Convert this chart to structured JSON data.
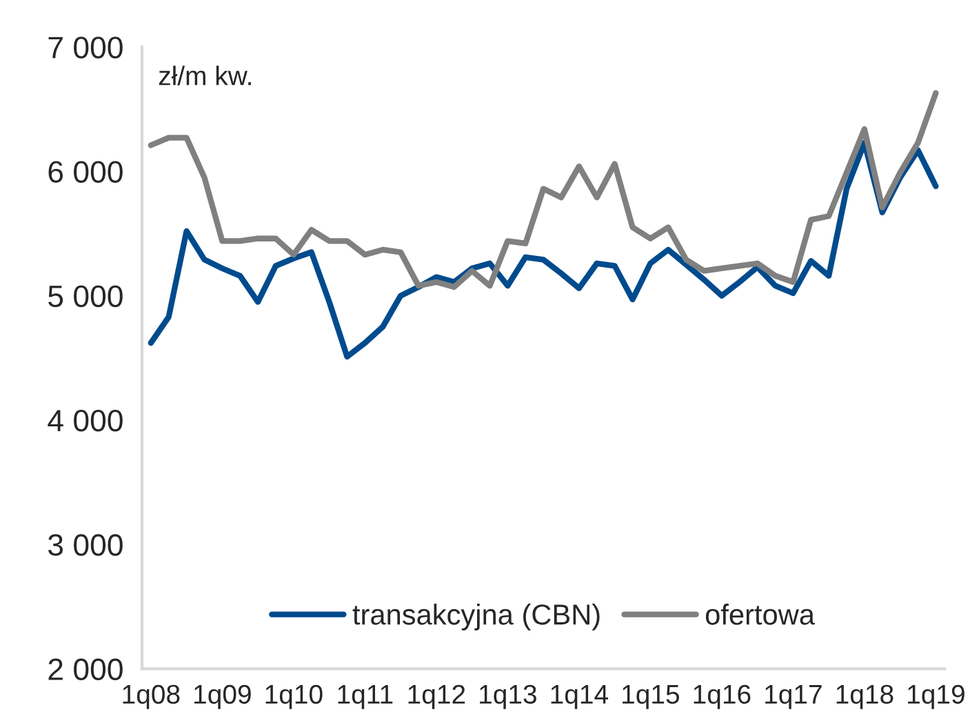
{
  "chart_data": {
    "type": "line",
    "categories": [
      "1q08",
      null,
      null,
      null,
      "1q09",
      null,
      null,
      null,
      "1q10",
      null,
      null,
      null,
      "1q11",
      null,
      null,
      null,
      "1q12",
      null,
      null,
      null,
      "1q13",
      null,
      null,
      null,
      "1q14",
      null,
      null,
      null,
      "1q15",
      null,
      null,
      null,
      "1q16",
      null,
      null,
      null,
      "1q17",
      null,
      null,
      null,
      "1q18",
      null,
      null,
      null,
      "1q19"
    ],
    "series": [
      {
        "name": "transakcyjna (CBN)",
        "color": "#004b8d",
        "values": [
          4620,
          4830,
          5520,
          5290,
          5220,
          5160,
          4950,
          5240,
          5300,
          5350,
          4950,
          4510,
          4620,
          4750,
          5000,
          5070,
          5150,
          5110,
          5220,
          5260,
          5080,
          5310,
          5290,
          5180,
          5060,
          5260,
          5240,
          4970,
          5260,
          5370,
          5250,
          5130,
          5000,
          5110,
          5230,
          5080,
          5020,
          5280,
          5160,
          5860,
          6230,
          5670,
          5950,
          6170,
          5880
        ]
      },
      {
        "name": "ofertowa",
        "color": "#808080",
        "values": [
          6210,
          6270,
          6270,
          5950,
          5440,
          5440,
          5460,
          5460,
          5330,
          5530,
          5440,
          5440,
          5330,
          5370,
          5350,
          5080,
          5110,
          5070,
          5200,
          5080,
          5440,
          5420,
          5860,
          5790,
          6040,
          5790,
          6060,
          5550,
          5460,
          5550,
          5290,
          5200,
          5220,
          5240,
          5260,
          5160,
          5110,
          5610,
          5640,
          5990,
          6340,
          5710,
          5990,
          6230,
          6630
        ]
      }
    ],
    "ylim": [
      2000,
      7000
    ],
    "yticks": [
      {
        "value": 2000,
        "label": "2 000"
      },
      {
        "value": 3000,
        "label": "3 000"
      },
      {
        "value": 4000,
        "label": "4 000"
      },
      {
        "value": 5000,
        "label": "5 000"
      },
      {
        "value": 6000,
        "label": "6 000"
      },
      {
        "value": 7000,
        "label": "7 000"
      }
    ],
    "annotations": [
      "zł/m kw."
    ],
    "legend": "bottom",
    "grid": false,
    "line_style": "solid",
    "marker": "none"
  }
}
